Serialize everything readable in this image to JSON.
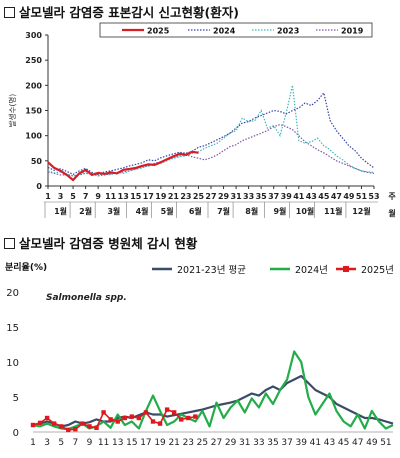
{
  "chart_data": [
    {
      "type": "line",
      "section_title": "살모넬라 감염증 표본감시 신고현황(환자)",
      "ylabel": "발생수(명)",
      "ylim": [
        0,
        300
      ],
      "yticks": [
        "0",
        "50",
        "100",
        "150",
        "200",
        "250",
        "300"
      ],
      "x_ticks": [
        "1",
        "3",
        "5",
        "7",
        "9",
        "11",
        "13",
        "15",
        "17",
        "19",
        "21",
        "23",
        "25",
        "27",
        "29",
        "31",
        "33",
        "35",
        "37",
        "39",
        "41",
        "43",
        "45",
        "47",
        "49",
        "51",
        "53"
      ],
      "x_unit": "주",
      "months": [
        "1월",
        "2월",
        "3월",
        "4월",
        "5월",
        "6월",
        "7월",
        "8월",
        "9월",
        "10월",
        "11월",
        "12월"
      ],
      "month_last": "월",
      "legend_position": "top-right",
      "series": [
        {
          "name": "2025",
          "color": "#d81e25",
          "style": "solid",
          "values": [
            47,
            36,
            30,
            22,
            12,
            25,
            32,
            22,
            26,
            24,
            27,
            25,
            32,
            34,
            36,
            40,
            43,
            42,
            47,
            53,
            59,
            64,
            62,
            68,
            66
          ]
        },
        {
          "name": "2024",
          "color": "#3344a8",
          "style": "dotted",
          "values": [
            37,
            31,
            34,
            29,
            23,
            30,
            35,
            27,
            23,
            28,
            30,
            33,
            36,
            40,
            43,
            46,
            52,
            50,
            56,
            60,
            64,
            67,
            65,
            69,
            77,
            80,
            86,
            92,
            98,
            105,
            115,
            125,
            128,
            135,
            140,
            145,
            150,
            148,
            143,
            150,
            155,
            165,
            160,
            170,
            185,
            130,
            110,
            95,
            80,
            70,
            55,
            45,
            36
          ]
        },
        {
          "name": "2023",
          "color": "#40b6bd",
          "style": "dotted",
          "values": [
            30,
            26,
            28,
            24,
            20,
            22,
            28,
            26,
            22,
            24,
            22,
            28,
            25,
            30,
            33,
            36,
            40,
            42,
            45,
            50,
            55,
            58,
            60,
            65,
            68,
            75,
            80,
            85,
            95,
            105,
            110,
            135,
            128,
            130,
            150,
            115,
            120,
            100,
            145,
            200,
            90,
            85,
            88,
            95,
            80,
            72,
            60,
            52,
            42,
            35,
            30,
            28,
            27
          ]
        },
        {
          "name": "2019",
          "color": "#7f55a8",
          "style": "dotted",
          "values": [
            28,
            25,
            22,
            22,
            20,
            22,
            25,
            24,
            20,
            22,
            24,
            26,
            28,
            30,
            34,
            38,
            40,
            45,
            48,
            52,
            56,
            60,
            62,
            58,
            55,
            52,
            56,
            62,
            70,
            78,
            82,
            90,
            95,
            100,
            105,
            110,
            118,
            122,
            118,
            112,
            100,
            88,
            80,
            72,
            66,
            58,
            50,
            45,
            40,
            35,
            30,
            27,
            25
          ]
        }
      ]
    },
    {
      "type": "line",
      "section_title": "살모넬라 감염증 병원체 감시 현황",
      "ylabel": "분리율(%)",
      "annotation": "Salmonella spp.",
      "ylim": [
        0,
        20
      ],
      "yticks": [
        "0",
        "5",
        "10",
        "15",
        "20"
      ],
      "x_ticks": [
        "1",
        "3",
        "5",
        "7",
        "9",
        "11",
        "13",
        "15",
        "17",
        "19",
        "21",
        "23",
        "25",
        "27",
        "29",
        "31",
        "33",
        "35",
        "37",
        "39",
        "41",
        "43",
        "45",
        "47",
        "49",
        "51"
      ],
      "legend_position": "top",
      "series": [
        {
          "name": "2021-23년 평균",
          "color": "#3c4b67",
          "marker": "none",
          "values": [
            1.0,
            1.2,
            1.5,
            1.2,
            0.8,
            1.0,
            1.5,
            1.2,
            1.4,
            1.8,
            1.5,
            1.5,
            2.0,
            2.2,
            2.0,
            2.4,
            2.8,
            2.5,
            2.5,
            2.2,
            2.4,
            2.6,
            2.8,
            3.0,
            3.2,
            3.5,
            3.8,
            4.0,
            4.2,
            4.5,
            5.0,
            5.5,
            5.2,
            6.0,
            6.5,
            6.0,
            7.0,
            7.5,
            8.0,
            7.0,
            6.0,
            5.5,
            5.0,
            4.0,
            3.5,
            3.0,
            2.5,
            2.0,
            2.0,
            1.8,
            1.5,
            1.2
          ]
        },
        {
          "name": "2024년",
          "color": "#22ad4a",
          "marker": "none",
          "values": [
            1.0,
            0.8,
            1.2,
            0.8,
            0.5,
            0.4,
            0.8,
            1.2,
            0.5,
            0.8,
            1.5,
            0.6,
            2.5,
            1.0,
            1.5,
            0.5,
            3.0,
            5.2,
            3.0,
            1.0,
            1.5,
            2.5,
            2.0,
            1.5,
            3.0,
            0.8,
            4.2,
            2.0,
            3.5,
            4.5,
            2.8,
            4.8,
            3.5,
            5.5,
            4.0,
            6.0,
            7.5,
            11.5,
            10.0,
            5.0,
            2.5,
            4.0,
            5.5,
            3.0,
            1.5,
            0.8,
            2.5,
            0.5,
            3.0,
            1.5,
            0.5,
            1.0
          ]
        },
        {
          "name": "2025년",
          "color": "#e0181e",
          "marker": "square",
          "values": [
            1.0,
            1.3,
            2.0,
            1.2,
            0.8,
            0.3,
            0.4,
            1.2,
            0.8,
            0.6,
            2.8,
            1.8,
            1.5,
            2.0,
            2.2,
            2.0,
            2.8,
            1.5,
            1.2,
            3.2,
            2.8,
            1.8,
            2.0,
            2.2
          ]
        }
      ]
    }
  ]
}
